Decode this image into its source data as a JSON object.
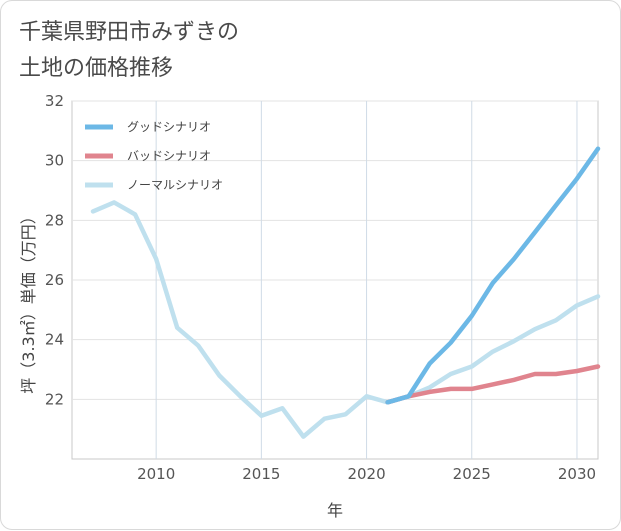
{
  "title": {
    "line1": "千葉県野田市みずきの",
    "line2": "土地の価格推移"
  },
  "chart_data": {
    "type": "line",
    "xlabel": "年",
    "ylabel": "坪（3.3㎡）単価（万円）",
    "xlim": [
      2006,
      2031
    ],
    "ylim": [
      20,
      32
    ],
    "xticks": [
      2010,
      2015,
      2020,
      2025,
      2030
    ],
    "yticks": [
      22,
      24,
      26,
      28,
      30,
      32
    ],
    "legend_position": "top-left",
    "series": [
      {
        "name": "グッドシナリオ",
        "color": "#6cb8e6",
        "x": [
          2021,
          2022,
          2023,
          2024,
          2025,
          2026,
          2027,
          2028,
          2029,
          2030,
          2031
        ],
        "y": [
          21.9,
          22.1,
          23.2,
          23.9,
          24.8,
          25.9,
          26.7,
          27.6,
          28.5,
          29.4,
          30.4
        ]
      },
      {
        "name": "バッドシナリオ",
        "color": "#e0848e",
        "x": [
          2021,
          2022,
          2023,
          2024,
          2025,
          2026,
          2027,
          2028,
          2029,
          2030,
          2031
        ],
        "y": [
          21.9,
          22.1,
          22.25,
          22.35,
          22.35,
          22.5,
          22.65,
          22.85,
          22.85,
          22.95,
          23.1
        ]
      },
      {
        "name": "ノーマルシナリオ",
        "color": "#bfe0ee",
        "x": [
          2007,
          2008,
          2009,
          2010,
          2011,
          2012,
          2013,
          2014,
          2015,
          2016,
          2017,
          2018,
          2019,
          2020,
          2021,
          2022,
          2023,
          2024,
          2025,
          2026,
          2027,
          2028,
          2029,
          2030,
          2031
        ],
        "y": [
          28.3,
          28.6,
          28.2,
          26.7,
          24.4,
          23.8,
          22.8,
          22.1,
          21.45,
          21.7,
          20.75,
          21.35,
          21.5,
          22.1,
          21.9,
          22.1,
          22.4,
          22.85,
          23.1,
          23.6,
          23.95,
          24.35,
          24.65,
          25.15,
          25.45
        ]
      }
    ]
  }
}
